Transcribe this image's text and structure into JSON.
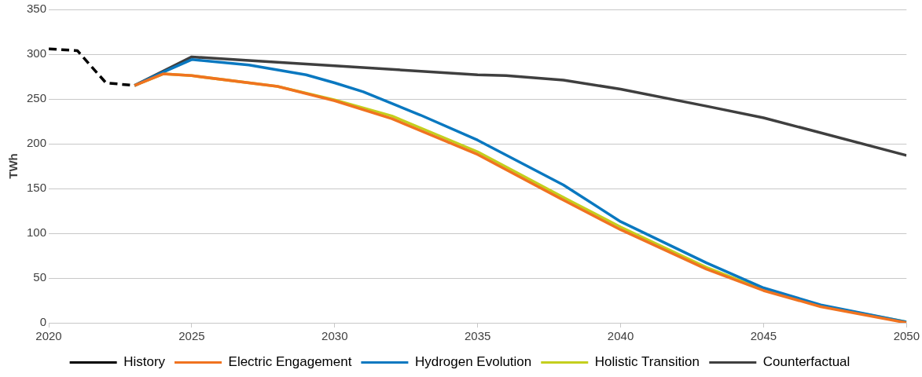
{
  "chart_data": {
    "type": "line",
    "ylabel": "TWh",
    "xlim": [
      2020,
      2050
    ],
    "xticks": [
      2020,
      2025,
      2030,
      2035,
      2040,
      2045,
      2050
    ],
    "ylim": [
      0,
      350
    ],
    "yticks": [
      0,
      50,
      100,
      150,
      200,
      250,
      300,
      350
    ],
    "grid": "y",
    "legend": "bottom",
    "marker": "none",
    "series": [
      {
        "name": "History",
        "color": "#000000",
        "line_style": "dashed",
        "x": [
          2020,
          2021,
          2022,
          2023
        ],
        "values": [
          306,
          304,
          268,
          265
        ]
      },
      {
        "name": "Electric Engagement",
        "color": "#f07320",
        "x": [
          2023,
          2024,
          2025,
          2028,
          2030,
          2032,
          2035,
          2038,
          2040,
          2043,
          2045,
          2047,
          2050
        ],
        "values": [
          265,
          278,
          276,
          264,
          248,
          228,
          188,
          137,
          104,
          60,
          36,
          18,
          0
        ]
      },
      {
        "name": "Hydrogen Evolution",
        "color": "#0a78c0",
        "x": [
          2023,
          2024,
          2025,
          2027,
          2029,
          2030,
          2031,
          2033,
          2035,
          2038,
          2040,
          2043,
          2045,
          2047,
          2050
        ],
        "values": [
          265,
          280,
          294,
          288,
          277,
          268,
          258,
          232,
          204,
          154,
          113,
          67,
          39,
          20,
          1
        ]
      },
      {
        "name": "Holistic Transition",
        "color": "#c4cf1e",
        "x": [
          2023,
          2024,
          2025,
          2028,
          2030,
          2032,
          2035,
          2038,
          2040,
          2043,
          2045,
          2047,
          2050
        ],
        "values": [
          265,
          278,
          276,
          264,
          249,
          231,
          191,
          140,
          107,
          62,
          37,
          19,
          1
        ]
      },
      {
        "name": "Counterfactual",
        "color": "#3f3f3f",
        "x": [
          2023,
          2025,
          2027,
          2030,
          2035,
          2036,
          2038,
          2040,
          2043,
          2045,
          2050
        ],
        "values": [
          265,
          297,
          293,
          287,
          277,
          276,
          271,
          261,
          242,
          229,
          187
        ]
      }
    ]
  }
}
